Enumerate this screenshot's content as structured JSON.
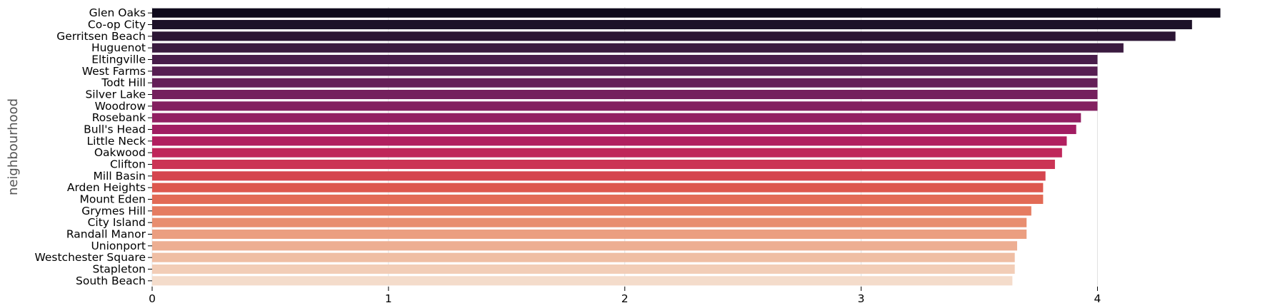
{
  "chart_data": {
    "type": "bar",
    "orientation": "horizontal",
    "ylabel": "neighbourhood",
    "xlabel": "",
    "title": "",
    "xlim": [
      0,
      4.6
    ],
    "xticks": [
      0,
      1,
      2,
      3,
      4
    ],
    "grid": "vertical",
    "legend": "none",
    "palette": "rocket",
    "categories": [
      "Glen Oaks",
      "Co-op City",
      "Gerritsen Beach",
      "Huguenot",
      "Eltingville",
      "West Farms",
      "Todt Hill",
      "Silver Lake",
      "Woodrow",
      "Rosebank",
      "Bull's Head",
      "Little Neck",
      "Oakwood",
      "Clifton",
      "Mill Basin",
      "Arden Heights",
      "Mount Eden",
      "Grymes Hill",
      "City Island",
      "Randall Manor",
      "Unionport",
      "Westchester Square",
      "Stapleton",
      "South Beach"
    ],
    "values": [
      4.52,
      4.4,
      4.33,
      4.11,
      4.0,
      4.0,
      4.0,
      4.0,
      4.0,
      3.93,
      3.91,
      3.87,
      3.85,
      3.82,
      3.78,
      3.77,
      3.77,
      3.72,
      3.7,
      3.7,
      3.66,
      3.65,
      3.65,
      3.64
    ],
    "colors": [
      "#0f0a1c",
      "#1d1128",
      "#2b1534",
      "#3a1a3f",
      "#481c4a",
      "#571e52",
      "#651f58",
      "#74205d",
      "#832060",
      "#921f62",
      "#a11d62",
      "#b11f5f",
      "#bf265a",
      "#cb3455",
      "#d5454f",
      "#dd574e",
      "#e26a55",
      "#e57c61",
      "#e88e70",
      "#eb9e80",
      "#edae92",
      "#efbea4",
      "#f2cdb7",
      "#f4dccb"
    ]
  }
}
